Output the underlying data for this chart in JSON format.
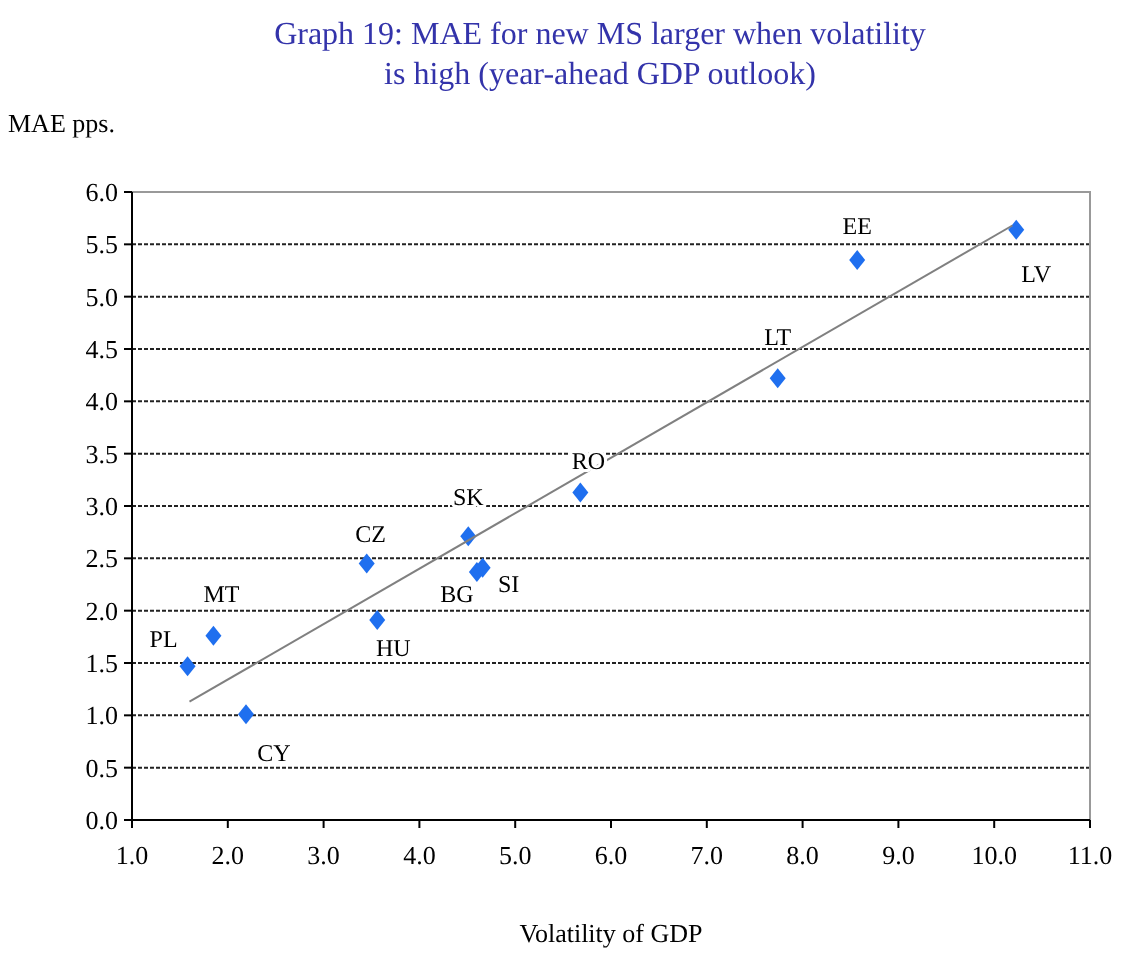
{
  "chart_data": {
    "type": "scatter",
    "title": "Graph 19: MAE for new MS larger when volatility is high (year-ahead GDP outlook)",
    "xlabel": "Volatility of GDP",
    "ylabel": "MAE pps.",
    "xlim": [
      1.0,
      11.0
    ],
    "xticks": [
      {
        "value": 1,
        "label": "1.0"
      },
      {
        "value": 2,
        "label": "2.0"
      },
      {
        "value": 3,
        "label": "3.0"
      },
      {
        "value": 4,
        "label": "4.0"
      },
      {
        "value": 5,
        "label": "5.0"
      },
      {
        "value": 6,
        "label": "6.0"
      },
      {
        "value": 7,
        "label": "7.0"
      },
      {
        "value": 8,
        "label": "8.0"
      },
      {
        "value": 9,
        "label": "9.0"
      },
      {
        "value": 10,
        "label": "10.0"
      },
      {
        "value": 11,
        "label": "11.0"
      }
    ],
    "ylim": [
      0.0,
      6.0
    ],
    "yticks": [
      {
        "value": 0,
        "label": "0.0"
      },
      {
        "value": 0.5,
        "label": "0.5"
      },
      {
        "value": 1,
        "label": "1.0"
      },
      {
        "value": 1.5,
        "label": "1.5"
      },
      {
        "value": 2,
        "label": "2.0"
      },
      {
        "value": 2.5,
        "label": "2.5"
      },
      {
        "value": 3,
        "label": "3.0"
      },
      {
        "value": 3.5,
        "label": "3.5"
      },
      {
        "value": 4,
        "label": "4.0"
      },
      {
        "value": 4.5,
        "label": "4.5"
      },
      {
        "value": 5,
        "label": "5.0"
      },
      {
        "value": 5.5,
        "label": "5.5"
      },
      {
        "value": 6,
        "label": "6.0"
      }
    ],
    "grid": "y",
    "series": [
      {
        "type": "scatter",
        "color": "#1f6fef",
        "marker": "diamond",
        "x": [
          1.58,
          1.85,
          2.19,
          3.45,
          3.56,
          4.51,
          4.6,
          4.66,
          5.68,
          7.74,
          8.57,
          10.23
        ],
        "values": [
          1.47,
          1.76,
          1.01,
          2.45,
          1.91,
          2.71,
          2.37,
          2.41,
          3.13,
          4.22,
          5.35,
          5.64
        ]
      },
      {
        "type": "line",
        "color": "#808080",
        "marker": "none",
        "x": [
          1.6,
          10.19
        ],
        "values": [
          1.13,
          5.68
        ]
      }
    ],
    "annotations": [
      {
        "text": "PL",
        "x": 1.58,
        "y": 1.47
      },
      {
        "text": "MT",
        "x": 1.85,
        "y": 1.76
      },
      {
        "text": "CY",
        "x": 2.19,
        "y": 1.01
      },
      {
        "text": "CZ",
        "x": 3.45,
        "y": 2.45
      },
      {
        "text": "HU",
        "x": 3.56,
        "y": 1.91
      },
      {
        "text": "SK",
        "x": 4.51,
        "y": 2.71
      },
      {
        "text": "BG",
        "x": 4.6,
        "y": 2.37
      },
      {
        "text": "SI",
        "x": 4.66,
        "y": 2.41
      },
      {
        "text": "RO",
        "x": 5.68,
        "y": 3.13
      },
      {
        "text": "LT",
        "x": 7.74,
        "y": 4.22
      },
      {
        "text": "EE",
        "x": 8.57,
        "y": 5.35
      },
      {
        "text": "LV",
        "x": 10.23,
        "y": 5.64
      }
    ]
  }
}
